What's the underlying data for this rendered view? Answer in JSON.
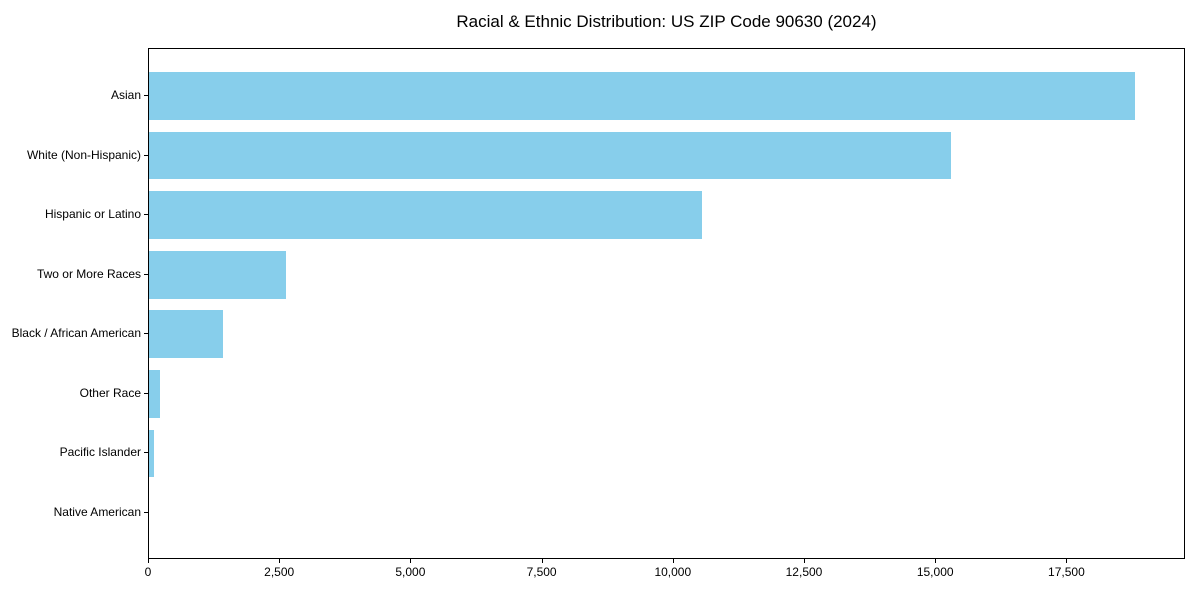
{
  "chart_data": {
    "type": "bar",
    "orientation": "horizontal",
    "title": "Racial & Ethnic Distribution: US ZIP Code 90630 (2024)",
    "categories": [
      "Asian",
      "White (Non-Hispanic)",
      "Hispanic or Latino",
      "Two or More Races",
      "Black / African American",
      "Other Race",
      "Pacific Islander",
      "Native American"
    ],
    "values": [
      18820,
      15310,
      10560,
      2620,
      1420,
      210,
      90,
      0
    ],
    "xlabel": "",
    "ylabel": "",
    "xlim": [
      0,
      19760
    ],
    "xticks": [
      0,
      2500,
      5000,
      7500,
      10000,
      12500,
      15000,
      17500
    ],
    "xtick_labels": [
      "0",
      "2,500",
      "5,000",
      "7,500",
      "10,000",
      "12,500",
      "15,000",
      "17,500"
    ],
    "bar_color": "#87CEEB",
    "text_color": "#000000",
    "grid": false,
    "legend": null
  }
}
